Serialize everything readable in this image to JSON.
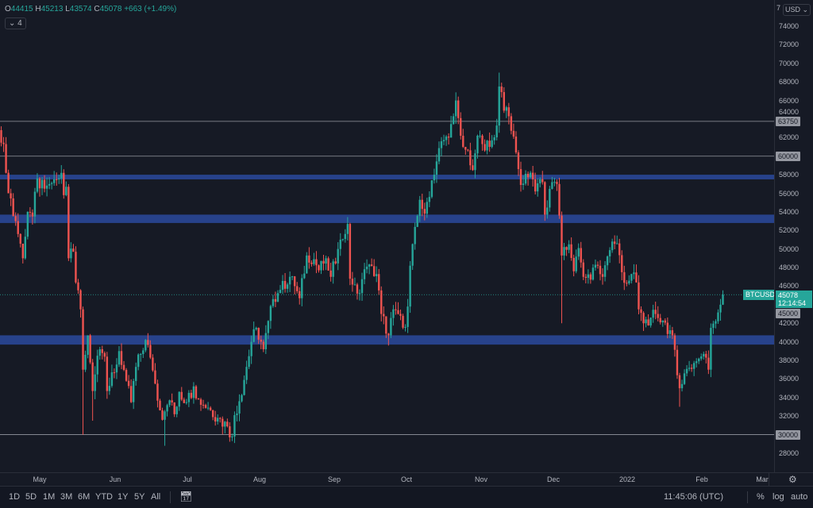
{
  "header": {
    "o_label": "O",
    "o": "44415",
    "h_label": "H",
    "h": "45213",
    "l_label": "L",
    "l": "43574",
    "c_label": "C",
    "c": "45078",
    "change": "+663 (+1.49%)",
    "collapse": "⌄ 4"
  },
  "price_axis": {
    "currency": "USD ⌄",
    "top_cut": "7",
    "labels": [
      "74000",
      "72000",
      "70000",
      "68000",
      "66000",
      "64000",
      "62000",
      "58000",
      "56000",
      "54000",
      "52000",
      "50000",
      "48000",
      "46000",
      "42000",
      "40000",
      "38000",
      "36000",
      "34000",
      "32000",
      "28000"
    ],
    "levels": [
      "63750",
      "60000",
      "45000",
      "30000"
    ],
    "current": "45078",
    "countdown": "12:14:54",
    "symbol": "BTCUSD"
  },
  "time_axis": {
    "labels": [
      "May",
      "Jun",
      "Jul",
      "Aug",
      "Sep",
      "Oct",
      "Nov",
      "Dec",
      "2022",
      "Feb",
      "Mar"
    ]
  },
  "toolbar": {
    "ranges": [
      "1D",
      "5D",
      "1M",
      "3M",
      "6M",
      "YTD",
      "1Y",
      "5Y",
      "All"
    ],
    "time": "11:45:06 (UTC)",
    "percent": "%",
    "log": "log",
    "auto": "auto"
  },
  "colors": {
    "up": "#26a69a",
    "down": "#ef5350",
    "zone": "#2a4a9e",
    "bg": "#161a25"
  },
  "chart_data": {
    "type": "candlestick",
    "symbol": "BTCUSD",
    "ylim": [
      27000,
      75500
    ],
    "x_unit": "days since May 1 2021",
    "horizontal_levels": [
      63750,
      60000,
      30000
    ],
    "zones": [
      [
        57500,
        58000
      ],
      [
        52800,
        53700
      ],
      [
        39700,
        40700
      ]
    ],
    "close_anchors": [
      [
        -18,
        63500
      ],
      [
        -17,
        62800
      ],
      [
        -15,
        61300
      ],
      [
        -13,
        56000
      ],
      [
        -10,
        53000
      ],
      [
        -7,
        49000
      ],
      [
        -5,
        54000
      ],
      [
        -3,
        53500
      ],
      [
        -1,
        57600
      ],
      [
        2,
        56500
      ],
      [
        4,
        57000
      ],
      [
        7,
        57500
      ],
      [
        9,
        58200
      ],
      [
        10,
        55800
      ],
      [
        11,
        56700
      ],
      [
        12,
        49000
      ],
      [
        14,
        49700
      ],
      [
        15,
        46400
      ],
      [
        17,
        43500
      ],
      [
        18,
        37000
      ],
      [
        20,
        40700
      ],
      [
        22,
        34700
      ],
      [
        24,
        38500
      ],
      [
        25,
        39200
      ],
      [
        27,
        38400
      ],
      [
        28,
        34700
      ],
      [
        31,
        36700
      ],
      [
        33,
        39000
      ],
      [
        36,
        35800
      ],
      [
        38,
        33500
      ],
      [
        40,
        37300
      ],
      [
        44,
        40200
      ],
      [
        46,
        38300
      ],
      [
        48,
        35500
      ],
      [
        51,
        31600
      ],
      [
        52,
        32500
      ],
      [
        54,
        33700
      ],
      [
        56,
        32200
      ],
      [
        58,
        34600
      ],
      [
        61,
        33500
      ],
      [
        64,
        35200
      ],
      [
        66,
        33800
      ],
      [
        70,
        32900
      ],
      [
        74,
        31800
      ],
      [
        78,
        30900
      ],
      [
        80,
        29800
      ],
      [
        81,
        32100
      ],
      [
        83,
        33600
      ],
      [
        86,
        37300
      ],
      [
        88,
        40000
      ],
      [
        90,
        41500
      ],
      [
        93,
        39200
      ],
      [
        97,
        44600
      ],
      [
        100,
        45600
      ],
      [
        104,
        47000
      ],
      [
        106,
        46000
      ],
      [
        108,
        44700
      ],
      [
        111,
        49300
      ],
      [
        114,
        48900
      ],
      [
        116,
        47700
      ],
      [
        119,
        49000
      ],
      [
        121,
        47000
      ],
      [
        124,
        50000
      ],
      [
        128,
        52700
      ],
      [
        129,
        46800
      ],
      [
        132,
        45200
      ],
      [
        136,
        48100
      ],
      [
        140,
        47300
      ],
      [
        142,
        43000
      ],
      [
        145,
        40700
      ],
      [
        147,
        43500
      ],
      [
        150,
        42800
      ],
      [
        152,
        41600
      ],
      [
        153,
        43800
      ],
      [
        154,
        48200
      ],
      [
        158,
        55300
      ],
      [
        160,
        53800
      ],
      [
        163,
        57400
      ],
      [
        167,
        61600
      ],
      [
        170,
        62000
      ],
      [
        172,
        64300
      ],
      [
        173,
        66000
      ],
      [
        175,
        62200
      ],
      [
        177,
        60700
      ],
      [
        180,
        58500
      ],
      [
        182,
        62200
      ],
      [
        184,
        61300
      ],
      [
        187,
        61000
      ],
      [
        190,
        63300
      ],
      [
        191,
        67500
      ],
      [
        192,
        66900
      ],
      [
        193,
        64900
      ],
      [
        195,
        64300
      ],
      [
        198,
        60400
      ],
      [
        200,
        56900
      ],
      [
        202,
        58100
      ],
      [
        205,
        57500
      ],
      [
        206,
        56200
      ],
      [
        209,
        57200
      ],
      [
        210,
        53700
      ],
      [
        213,
        57200
      ],
      [
        215,
        57000
      ],
      [
        216,
        53600
      ],
      [
        217,
        49300
      ],
      [
        220,
        50500
      ],
      [
        222,
        47600
      ],
      [
        224,
        50100
      ],
      [
        226,
        47000
      ],
      [
        229,
        46700
      ],
      [
        231,
        48300
      ],
      [
        234,
        47000
      ],
      [
        236,
        49200
      ],
      [
        238,
        50800
      ],
      [
        240,
        50600
      ],
      [
        242,
        47500
      ],
      [
        244,
        46300
      ],
      [
        246,
        47300
      ],
      [
        248,
        46400
      ],
      [
        249,
        43500
      ],
      [
        251,
        42000
      ],
      [
        254,
        42600
      ],
      [
        256,
        43000
      ],
      [
        259,
        42300
      ],
      [
        263,
        40700
      ],
      [
        265,
        36400
      ],
      [
        266,
        35000
      ],
      [
        268,
        36600
      ],
      [
        270,
        37200
      ],
      [
        273,
        37900
      ],
      [
        276,
        38700
      ],
      [
        278,
        37000
      ],
      [
        279,
        41500
      ],
      [
        283,
        44000
      ],
      [
        284,
        45078
      ]
    ],
    "wick_extremes": [
      [
        18,
        "low",
        30000
      ],
      [
        22,
        "low",
        31500
      ],
      [
        52,
        "low",
        28800
      ],
      [
        80,
        "low",
        29300
      ],
      [
        145,
        "low",
        39600
      ],
      [
        217,
        "low",
        42000
      ],
      [
        191,
        "high",
        69000
      ],
      [
        266,
        "low",
        33000
      ],
      [
        -18,
        "high",
        64800
      ]
    ],
    "last_price": 45078
  }
}
